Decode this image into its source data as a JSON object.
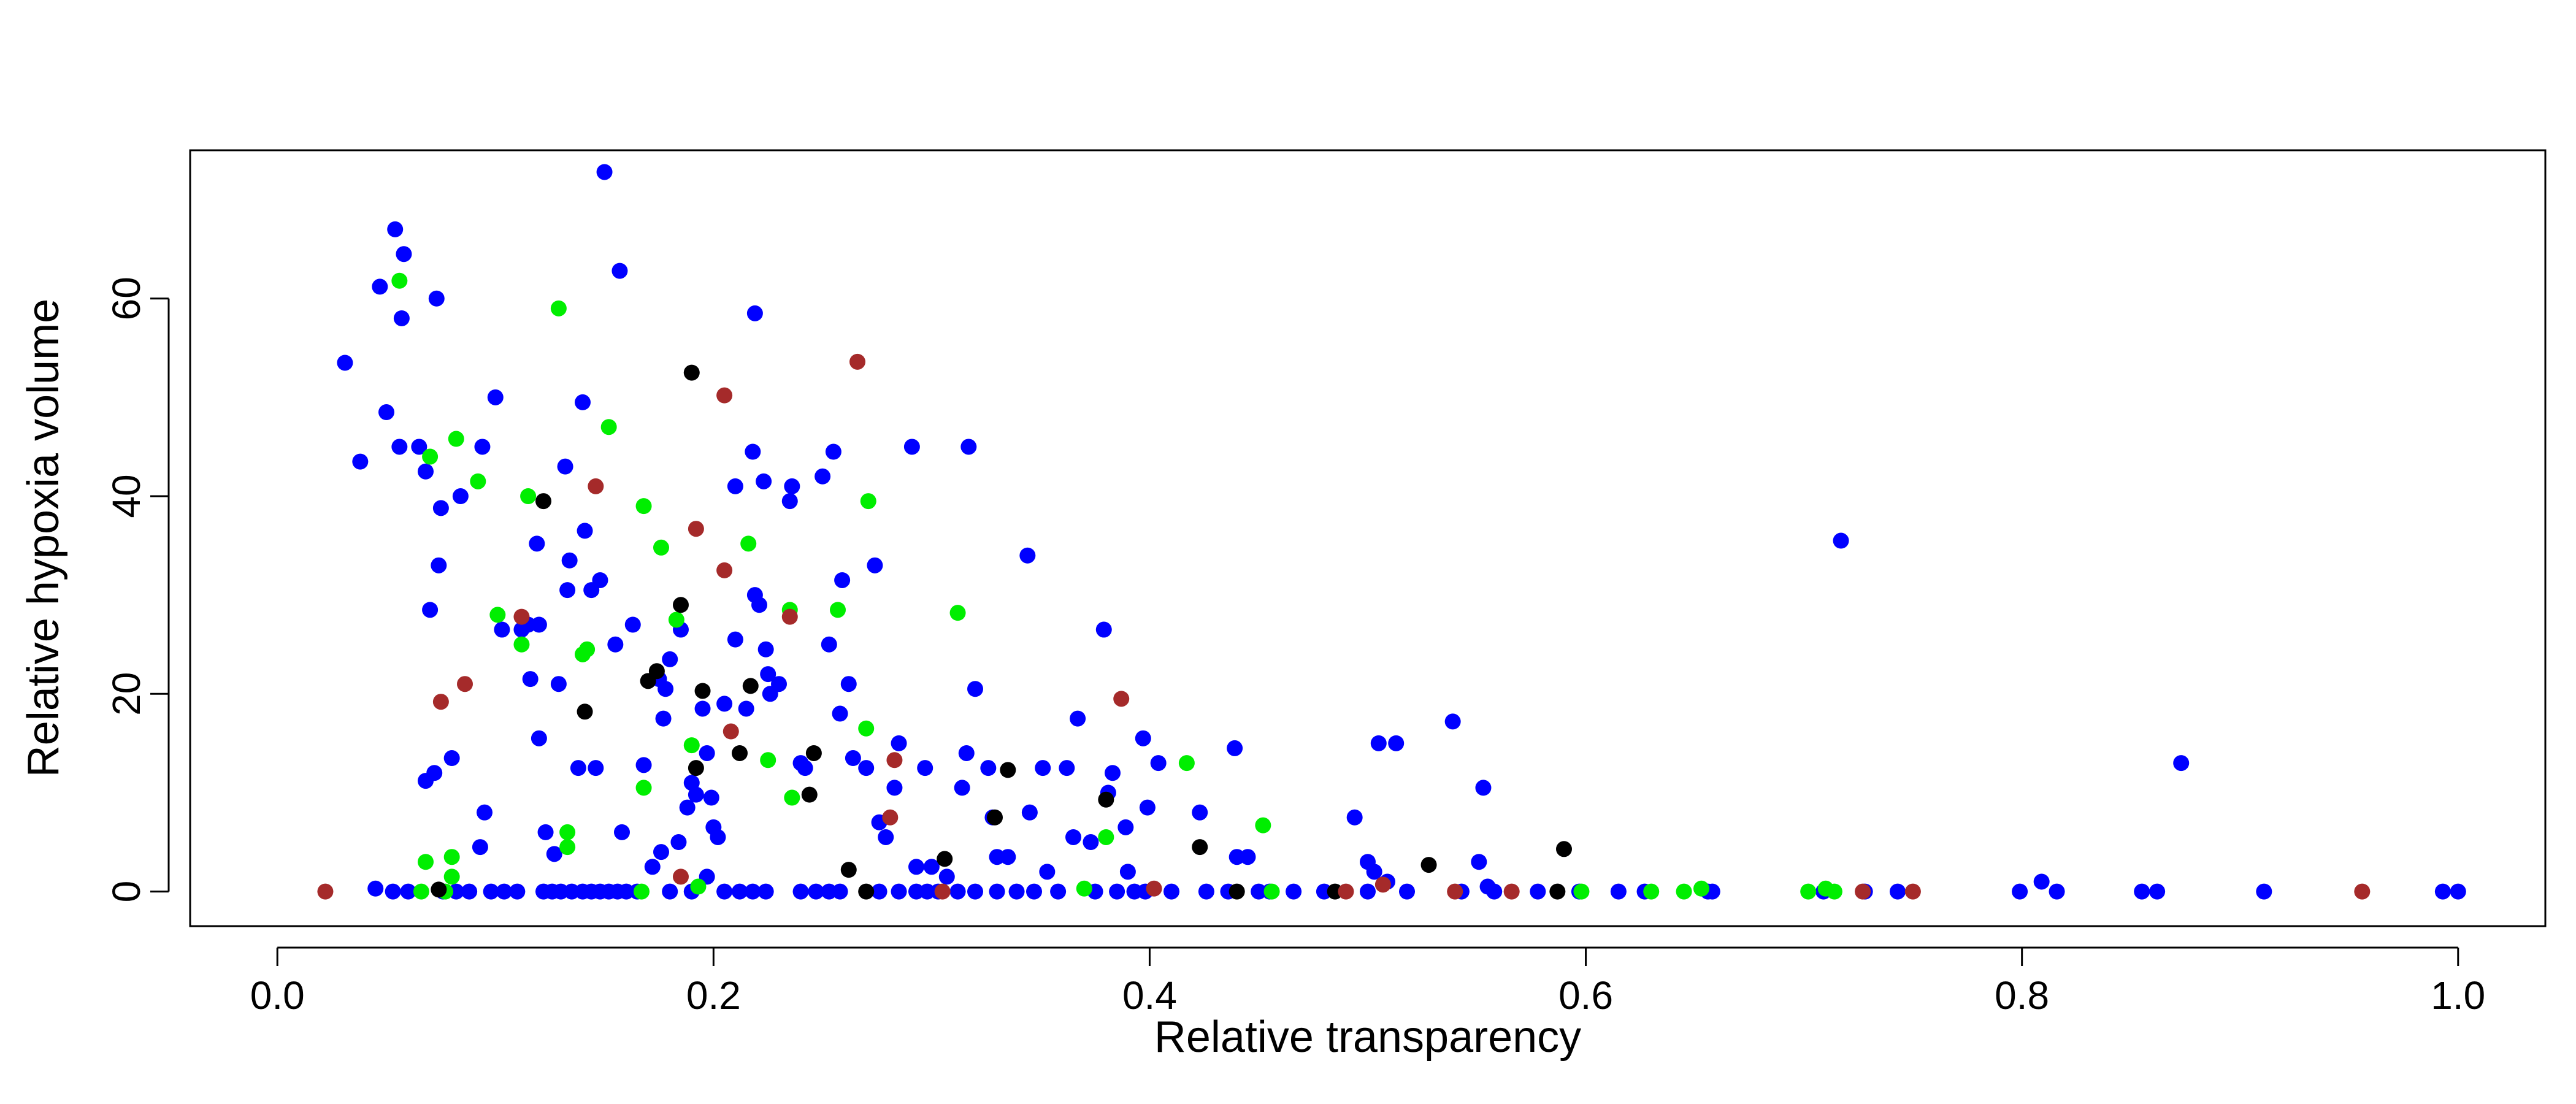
{
  "chart_data": {
    "type": "scatter",
    "title": "",
    "xlabel": "Relative transparency",
    "ylabel": "Relative hypoxia volume",
    "xlim": [
      -0.04,
      1.04
    ],
    "ylim": [
      -3.5,
      75
    ],
    "xticks": [
      0.0,
      0.2,
      0.4,
      0.6,
      0.8,
      1.0
    ],
    "xtick_labels": [
      "0.0",
      "0.2",
      "0.4",
      "0.6",
      "0.8",
      "1.0"
    ],
    "yticks": [
      0,
      20,
      40,
      60
    ],
    "ytick_labels": [
      "0",
      "20",
      "40",
      "60"
    ],
    "grid": false,
    "legend": "none",
    "series": [
      {
        "color": "#0000ff",
        "points": [
          [
            0.031,
            53.5
          ],
          [
            0.038,
            43.5
          ],
          [
            0.047,
            61.2
          ],
          [
            0.05,
            48.5
          ],
          [
            0.054,
            67.0
          ],
          [
            0.056,
            45.0
          ],
          [
            0.057,
            58.0
          ],
          [
            0.058,
            64.5
          ],
          [
            0.065,
            45.0
          ],
          [
            0.068,
            42.5
          ],
          [
            0.07,
            28.5
          ],
          [
            0.073,
            60.0
          ],
          [
            0.074,
            33.0
          ],
          [
            0.075,
            38.8
          ],
          [
            0.08,
            13.5
          ],
          [
            0.072,
            12.0
          ],
          [
            0.068,
            11.2
          ],
          [
            0.084,
            40.0
          ],
          [
            0.094,
            45.0
          ],
          [
            0.095,
            8.0
          ],
          [
            0.093,
            4.5
          ],
          [
            0.1,
            50.0
          ],
          [
            0.103,
            26.5
          ],
          [
            0.112,
            26.5
          ],
          [
            0.115,
            27.0
          ],
          [
            0.116,
            21.5
          ],
          [
            0.119,
            35.2
          ],
          [
            0.12,
            27.0
          ],
          [
            0.12,
            15.5
          ],
          [
            0.123,
            6.0
          ],
          [
            0.127,
            3.8
          ],
          [
            0.129,
            21.0
          ],
          [
            0.132,
            43.0
          ],
          [
            0.133,
            30.5
          ],
          [
            0.134,
            33.5
          ],
          [
            0.138,
            12.5
          ],
          [
            0.14,
            49.5
          ],
          [
            0.141,
            36.5
          ],
          [
            0.144,
            30.5
          ],
          [
            0.146,
            12.5
          ],
          [
            0.148,
            31.5
          ],
          [
            0.15,
            72.8
          ],
          [
            0.155,
            25.0
          ],
          [
            0.157,
            62.8
          ],
          [
            0.158,
            6.0
          ],
          [
            0.163,
            27.0
          ],
          [
            0.168,
            12.8
          ],
          [
            0.172,
            2.5
          ],
          [
            0.175,
            21.5
          ],
          [
            0.176,
            4.0
          ],
          [
            0.177,
            17.5
          ],
          [
            0.178,
            20.5
          ],
          [
            0.18,
            23.5
          ],
          [
            0.184,
            5.0
          ],
          [
            0.185,
            26.5
          ],
          [
            0.188,
            8.5
          ],
          [
            0.19,
            11.0
          ],
          [
            0.192,
            9.8
          ],
          [
            0.195,
            18.5
          ],
          [
            0.197,
            14.0
          ],
          [
            0.199,
            9.5
          ],
          [
            0.2,
            6.5
          ],
          [
            0.202,
            5.5
          ],
          [
            0.205,
            19.0
          ],
          [
            0.21,
            25.5
          ],
          [
            0.21,
            41.0
          ],
          [
            0.215,
            18.5
          ],
          [
            0.218,
            44.5
          ],
          [
            0.219,
            58.5
          ],
          [
            0.219,
            30.0
          ],
          [
            0.221,
            29.0
          ],
          [
            0.223,
            41.5
          ],
          [
            0.224,
            24.5
          ],
          [
            0.225,
            22.0
          ],
          [
            0.226,
            20.0
          ],
          [
            0.23,
            21.0
          ],
          [
            0.235,
            39.5
          ],
          [
            0.236,
            41.0
          ],
          [
            0.24,
            13.0
          ],
          [
            0.242,
            12.5
          ],
          [
            0.25,
            42.0
          ],
          [
            0.253,
            25.0
          ],
          [
            0.255,
            44.5
          ],
          [
            0.258,
            18.0
          ],
          [
            0.259,
            31.5
          ],
          [
            0.262,
            21.0
          ],
          [
            0.264,
            13.5
          ],
          [
            0.27,
            12.5
          ],
          [
            0.274,
            33.0
          ],
          [
            0.276,
            7.0
          ],
          [
            0.279,
            5.5
          ],
          [
            0.283,
            10.5
          ],
          [
            0.285,
            15.0
          ],
          [
            0.291,
            45.0
          ],
          [
            0.293,
            2.5
          ],
          [
            0.297,
            12.5
          ],
          [
            0.3,
            2.5
          ],
          [
            0.307,
            1.5
          ],
          [
            0.314,
            10.5
          ],
          [
            0.316,
            14.0
          ],
          [
            0.317,
            45.0
          ],
          [
            0.32,
            20.5
          ],
          [
            0.326,
            12.5
          ],
          [
            0.328,
            7.5
          ],
          [
            0.33,
            3.5
          ],
          [
            0.335,
            3.5
          ],
          [
            0.344,
            34.0
          ],
          [
            0.345,
            8.0
          ],
          [
            0.351,
            12.5
          ],
          [
            0.353,
            2.0
          ],
          [
            0.362,
            12.5
          ],
          [
            0.365,
            5.5
          ],
          [
            0.367,
            17.5
          ],
          [
            0.373,
            5.0
          ],
          [
            0.379,
            26.5
          ],
          [
            0.381,
            10.0
          ],
          [
            0.383,
            12.0
          ],
          [
            0.389,
            6.5
          ],
          [
            0.39,
            2.0
          ],
          [
            0.397,
            15.5
          ],
          [
            0.399,
            8.5
          ],
          [
            0.404,
            13.0
          ],
          [
            0.423,
            8.0
          ],
          [
            0.439,
            14.5
          ],
          [
            0.44,
            3.5
          ],
          [
            0.445,
            3.5
          ],
          [
            0.494,
            7.5
          ],
          [
            0.5,
            3.0
          ],
          [
            0.503,
            2.0
          ],
          [
            0.505,
            15.0
          ],
          [
            0.509,
            1.0
          ],
          [
            0.513,
            15.0
          ],
          [
            0.539,
            17.2
          ],
          [
            0.551,
            3.0
          ],
          [
            0.553,
            10.5
          ],
          [
            0.555,
            0.5
          ],
          [
            0.717,
            35.5
          ],
          [
            0.873,
            13.0
          ],
          [
            0.809,
            1.0
          ],
          [
            0.045,
            0.3
          ],
          [
            0.053,
            0
          ],
          [
            0.06,
            0
          ],
          [
            0.076,
            0
          ],
          [
            0.082,
            0
          ],
          [
            0.088,
            0
          ],
          [
            0.098,
            0
          ],
          [
            0.104,
            0
          ],
          [
            0.11,
            0
          ],
          [
            0.122,
            0
          ],
          [
            0.126,
            0
          ],
          [
            0.13,
            0
          ],
          [
            0.135,
            0
          ],
          [
            0.14,
            0
          ],
          [
            0.144,
            0
          ],
          [
            0.148,
            0
          ],
          [
            0.152,
            0
          ],
          [
            0.156,
            0
          ],
          [
            0.16,
            0
          ],
          [
            0.165,
            0
          ],
          [
            0.18,
            0
          ],
          [
            0.19,
            0
          ],
          [
            0.197,
            1.5
          ],
          [
            0.205,
            0
          ],
          [
            0.212,
            0
          ],
          [
            0.218,
            0
          ],
          [
            0.224,
            0
          ],
          [
            0.24,
            0
          ],
          [
            0.247,
            0
          ],
          [
            0.253,
            0
          ],
          [
            0.258,
            0
          ],
          [
            0.276,
            0
          ],
          [
            0.285,
            0
          ],
          [
            0.293,
            0
          ],
          [
            0.298,
            0
          ],
          [
            0.303,
            0
          ],
          [
            0.312,
            0
          ],
          [
            0.32,
            0
          ],
          [
            0.33,
            0
          ],
          [
            0.339,
            0
          ],
          [
            0.347,
            0
          ],
          [
            0.358,
            0
          ],
          [
            0.375,
            0
          ],
          [
            0.385,
            0
          ],
          [
            0.393,
            0
          ],
          [
            0.398,
            0
          ],
          [
            0.41,
            0
          ],
          [
            0.426,
            0
          ],
          [
            0.436,
            0
          ],
          [
            0.45,
            0
          ],
          [
            0.455,
            0
          ],
          [
            0.466,
            0
          ],
          [
            0.48,
            0
          ],
          [
            0.5,
            0
          ],
          [
            0.518,
            0
          ],
          [
            0.543,
            0
          ],
          [
            0.558,
            0
          ],
          [
            0.578,
            0
          ],
          [
            0.597,
            0
          ],
          [
            0.615,
            0
          ],
          [
            0.627,
            0
          ],
          [
            0.656,
            0
          ],
          [
            0.658,
            0
          ],
          [
            0.709,
            0
          ],
          [
            0.728,
            0
          ],
          [
            0.743,
            0
          ],
          [
            0.799,
            0
          ],
          [
            0.816,
            0
          ],
          [
            0.855,
            0
          ],
          [
            0.862,
            0
          ],
          [
            0.911,
            0
          ],
          [
            0.993,
            0
          ],
          [
            1.0,
            0
          ]
        ]
      },
      {
        "color": "#00ee00",
        "points": [
          [
            0.056,
            61.8
          ],
          [
            0.068,
            3.0
          ],
          [
            0.07,
            44.0
          ],
          [
            0.08,
            3.5
          ],
          [
            0.08,
            1.5
          ],
          [
            0.082,
            45.8
          ],
          [
            0.092,
            41.5
          ],
          [
            0.101,
            28.0
          ],
          [
            0.112,
            25.0
          ],
          [
            0.115,
            40.0
          ],
          [
            0.129,
            59.0
          ],
          [
            0.133,
            6.0
          ],
          [
            0.133,
            4.5
          ],
          [
            0.14,
            24.0
          ],
          [
            0.142,
            24.5
          ],
          [
            0.152,
            47.0
          ],
          [
            0.168,
            10.5
          ],
          [
            0.168,
            39.0
          ],
          [
            0.176,
            34.8
          ],
          [
            0.183,
            27.5
          ],
          [
            0.19,
            14.8
          ],
          [
            0.193,
            0.5
          ],
          [
            0.216,
            35.2
          ],
          [
            0.225,
            13.3
          ],
          [
            0.235,
            28.5
          ],
          [
            0.236,
            9.5
          ],
          [
            0.257,
            28.5
          ],
          [
            0.27,
            16.5
          ],
          [
            0.271,
            39.5
          ],
          [
            0.312,
            28.2
          ],
          [
            0.38,
            5.5
          ],
          [
            0.417,
            13.0
          ],
          [
            0.452,
            6.7
          ],
          [
            0.37,
            0.3
          ],
          [
            0.456,
            0
          ],
          [
            0.066,
            0
          ],
          [
            0.077,
            0
          ],
          [
            0.167,
            0
          ],
          [
            0.63,
            0
          ],
          [
            0.645,
            0
          ],
          [
            0.653,
            0.3
          ],
          [
            0.702,
            0
          ],
          [
            0.71,
            0.3
          ],
          [
            0.714,
            0
          ],
          [
            0.598,
            0
          ]
        ]
      },
      {
        "color": "#000000",
        "points": [
          [
            0.122,
            39.5
          ],
          [
            0.141,
            18.2
          ],
          [
            0.17,
            21.3
          ],
          [
            0.174,
            22.3
          ],
          [
            0.185,
            29.0
          ],
          [
            0.19,
            52.5
          ],
          [
            0.192,
            12.5
          ],
          [
            0.195,
            20.3
          ],
          [
            0.212,
            14.0
          ],
          [
            0.217,
            20.8
          ],
          [
            0.244,
            9.8
          ],
          [
            0.246,
            14.0
          ],
          [
            0.262,
            2.2
          ],
          [
            0.306,
            3.3
          ],
          [
            0.329,
            7.5
          ],
          [
            0.335,
            12.3
          ],
          [
            0.38,
            9.3
          ],
          [
            0.423,
            4.5
          ],
          [
            0.528,
            2.7
          ],
          [
            0.59,
            4.3
          ],
          [
            0.074,
            0.2
          ],
          [
            0.27,
            0
          ],
          [
            0.44,
            0
          ],
          [
            0.485,
            0
          ],
          [
            0.587,
            0
          ]
        ]
      },
      {
        "color": "#a52a2a",
        "points": [
          [
            0.022,
            0
          ],
          [
            0.075,
            19.2
          ],
          [
            0.086,
            21.0
          ],
          [
            0.112,
            27.8
          ],
          [
            0.146,
            41.0
          ],
          [
            0.185,
            1.5
          ],
          [
            0.192,
            36.7
          ],
          [
            0.205,
            32.5
          ],
          [
            0.205,
            50.2
          ],
          [
            0.208,
            16.2
          ],
          [
            0.235,
            27.8
          ],
          [
            0.266,
            53.6
          ],
          [
            0.281,
            7.5
          ],
          [
            0.283,
            13.3
          ],
          [
            0.387,
            19.5
          ],
          [
            0.402,
            0.3
          ],
          [
            0.305,
            0
          ],
          [
            0.49,
            0
          ],
          [
            0.507,
            0.7
          ],
          [
            0.54,
            0
          ],
          [
            0.566,
            0
          ],
          [
            0.727,
            0
          ],
          [
            0.75,
            0
          ],
          [
            0.956,
            0
          ]
        ]
      }
    ]
  }
}
